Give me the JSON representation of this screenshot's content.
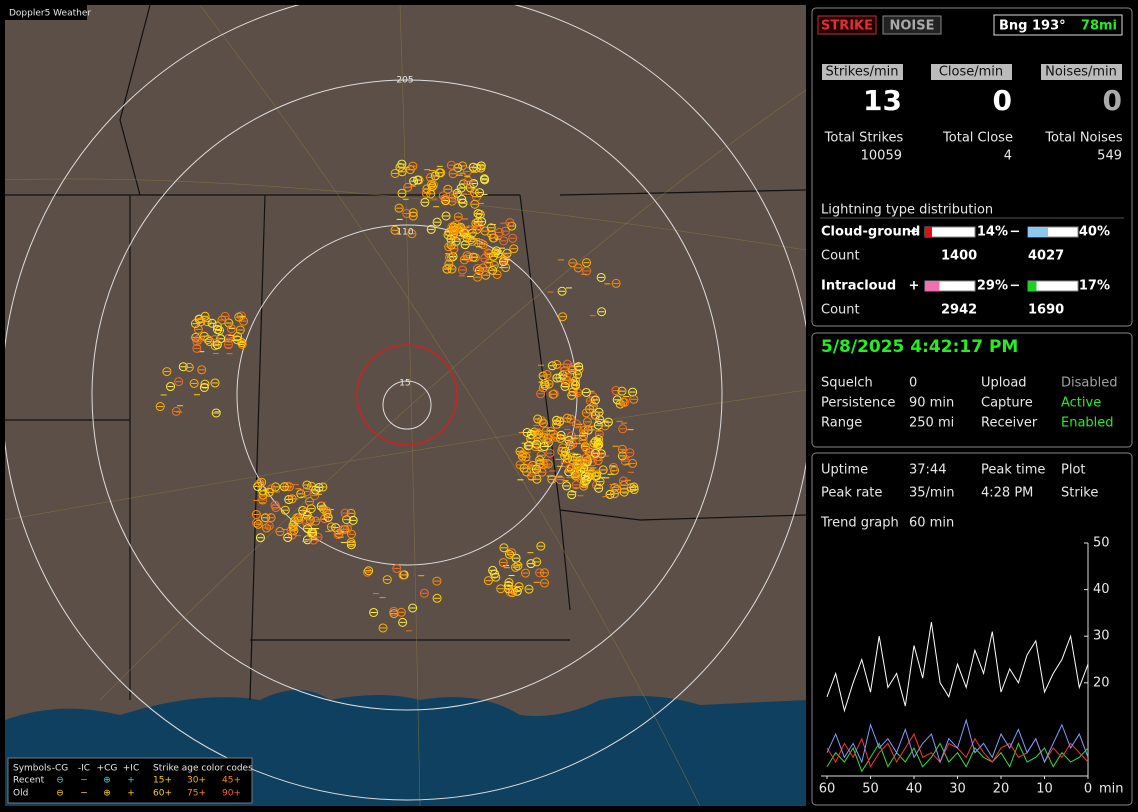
{
  "window_title": "Doppler5 Weather",
  "map": {
    "range_labels": [
      "205",
      "110",
      "15"
    ]
  },
  "legend": {
    "title": "Symbols",
    "types": [
      "-CG",
      "-IC",
      "+CG",
      "+IC"
    ],
    "age_title": "Strike age color codes",
    "rows": [
      {
        "label": "Recent",
        "symbols": [
          "⊖",
          "−",
          "⊕",
          "+"
        ],
        "ages": [
          "15+",
          "30+",
          "45+"
        ]
      },
      {
        "label": "Old",
        "symbols": [
          "⊖",
          "−",
          "⊕",
          "+"
        ],
        "ages": [
          "60+",
          "75+",
          "90+"
        ]
      }
    ]
  },
  "buttons": {
    "strike": "STRIKE",
    "noise": "NOISE"
  },
  "bearing": {
    "label": "Bng 193°",
    "distance": "78mi"
  },
  "rates": [
    {
      "label": "Strikes/min",
      "value": 13
    },
    {
      "label": "Close/min",
      "value": 0
    },
    {
      "label": "Noises/min",
      "value": 0
    }
  ],
  "totals": [
    {
      "label": "Total Strikes",
      "value": 10059
    },
    {
      "label": "Total Close",
      "value": 4
    },
    {
      "label": "Total Noises",
      "value": 549
    }
  ],
  "distribution": {
    "title": "Lightning type distribution",
    "count_label": "Count",
    "types": [
      {
        "name": "Cloud-ground",
        "pos": {
          "sign": "+",
          "value": 14,
          "label": "14%",
          "count": 1400,
          "color": "#e01010"
        },
        "neg": {
          "sign": "−",
          "value": 40,
          "label": "40%",
          "count": 4027,
          "color": "#8cc8f0"
        }
      },
      {
        "name": "Intracloud",
        "pos": {
          "sign": "+",
          "value": 29,
          "label": "29%",
          "count": 2942,
          "color": "#f070b0"
        },
        "neg": {
          "sign": "−",
          "value": 17,
          "label": "17%",
          "count": 1690,
          "color": "#20d020"
        }
      }
    ]
  },
  "status": {
    "datetime": "5/8/2025 4:42:17 PM",
    "rows": [
      [
        "Squelch",
        "0",
        "Upload",
        "Disabled"
      ],
      [
        "Persistence",
        "90 min",
        "Capture",
        "Active"
      ],
      [
        "Range",
        "250 mi",
        "Receiver",
        "Enabled"
      ]
    ]
  },
  "stats": {
    "rows": [
      [
        "Uptime",
        "37:44",
        "Peak time",
        "Plot"
      ],
      [
        "Peak rate",
        "35/min",
        "4:28 PM",
        "Strike"
      ]
    ],
    "trend_label": "Trend graph",
    "trend_value": "60 min"
  },
  "chart_data": {
    "type": "line",
    "xlabel": "min",
    "x": [
      60,
      58,
      56,
      54,
      52,
      50,
      48,
      46,
      44,
      42,
      40,
      38,
      36,
      34,
      32,
      30,
      28,
      26,
      24,
      22,
      20,
      18,
      16,
      14,
      12,
      10,
      8,
      6,
      4,
      2,
      0
    ],
    "xlim": [
      60,
      0
    ],
    "xticks": [
      60,
      50,
      40,
      30,
      20,
      10,
      0
    ],
    "ylim": [
      0,
      50
    ],
    "yticks": [
      20,
      30,
      40,
      50
    ],
    "series": [
      {
        "color": "#ffffff",
        "values": [
          17,
          22,
          14,
          20,
          25,
          18,
          30,
          19,
          22,
          15,
          28,
          21,
          33,
          20,
          17,
          24,
          19,
          27,
          22,
          31,
          18,
          23,
          20,
          26,
          29,
          18,
          22,
          25,
          30,
          19,
          24
        ]
      },
      {
        "color": "#7f9cff",
        "values": [
          5,
          9,
          4,
          7,
          3,
          11,
          6,
          8,
          5,
          10,
          4,
          7,
          9,
          3,
          8,
          6,
          12,
          5,
          7,
          4,
          9,
          6,
          10,
          5,
          8,
          3,
          7,
          11,
          6,
          9,
          4
        ]
      },
      {
        "color": "#ff3030",
        "values": [
          6,
          3,
          7,
          4,
          8,
          2,
          5,
          7,
          3,
          6,
          9,
          4,
          5,
          3,
          7,
          6,
          4,
          8,
          5,
          3,
          6,
          7,
          4,
          5,
          8,
          3,
          6,
          4,
          7,
          5,
          3
        ]
      },
      {
        "color": "#30e030",
        "values": [
          2,
          5,
          3,
          6,
          1,
          4,
          7,
          2,
          5,
          3,
          6,
          2,
          4,
          7,
          3,
          5,
          2,
          6,
          4,
          3,
          5,
          2,
          7,
          3,
          4,
          6,
          2,
          5,
          3,
          4,
          6
        ]
      }
    ]
  }
}
